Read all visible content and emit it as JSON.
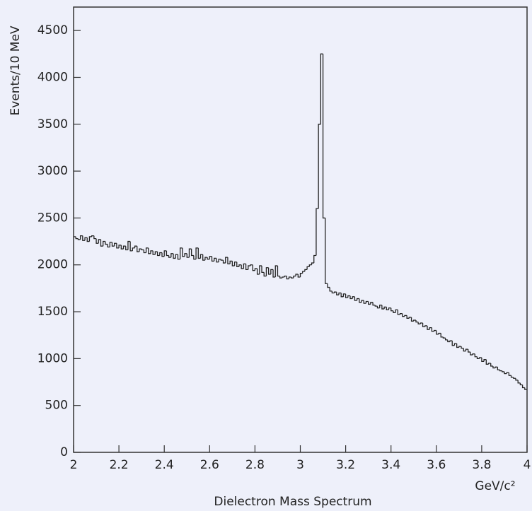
{
  "chart_data": {
    "type": "histogram",
    "title": "Dielectron Mass Spectrum",
    "x_label": "GeV/c²",
    "y_label": "Events/10 MeV",
    "color": "#222222",
    "xlim": [
      2,
      4
    ],
    "ylim": [
      0,
      4750
    ],
    "xticks": [
      2,
      2.2,
      2.4,
      2.6,
      2.8,
      3,
      3.2,
      3.4,
      3.6,
      3.8,
      4
    ],
    "yticks": [
      0,
      500,
      1000,
      1500,
      2000,
      2500,
      3000,
      3500,
      4000,
      4500
    ],
    "bins": [
      2,
      2.01,
      2.02,
      2.03,
      2.04,
      2.05,
      2.06,
      2.07,
      2.08,
      2.09,
      2.1,
      2.11,
      2.12,
      2.13,
      2.14,
      2.15,
      2.16,
      2.17,
      2.18,
      2.19,
      2.2,
      2.21,
      2.22,
      2.23,
      2.24,
      2.25,
      2.26,
      2.27,
      2.28,
      2.29,
      2.3,
      2.31,
      2.32,
      2.33,
      2.34,
      2.35,
      2.36,
      2.37,
      2.38,
      2.39,
      2.4,
      2.41,
      2.42,
      2.43,
      2.44,
      2.45,
      2.46,
      2.47,
      2.48,
      2.49,
      2.5,
      2.51,
      2.52,
      2.53,
      2.54,
      2.55,
      2.56,
      2.57,
      2.58,
      2.59,
      2.6,
      2.61,
      2.62,
      2.63,
      2.64,
      2.65,
      2.66,
      2.67,
      2.68,
      2.69,
      2.7,
      2.71,
      2.72,
      2.73,
      2.74,
      2.75,
      2.76,
      2.77,
      2.78,
      2.79,
      2.8,
      2.81,
      2.82,
      2.83,
      2.84,
      2.85,
      2.86,
      2.87,
      2.88,
      2.89,
      2.9,
      2.91,
      2.92,
      2.93,
      2.94,
      2.95,
      2.96,
      2.97,
      2.98,
      2.99,
      3,
      3.01,
      3.02,
      3.03,
      3.04,
      3.05,
      3.06,
      3.07,
      3.08,
      3.09,
      3.1,
      3.11,
      3.12,
      3.13,
      3.14,
      3.15,
      3.16,
      3.17,
      3.18,
      3.19,
      3.2,
      3.21,
      3.22,
      3.23,
      3.24,
      3.25,
      3.26,
      3.27,
      3.28,
      3.29,
      3.3,
      3.31,
      3.32,
      3.33,
      3.34,
      3.35,
      3.36,
      3.37,
      3.38,
      3.39,
      3.4,
      3.41,
      3.42,
      3.43,
      3.44,
      3.45,
      3.46,
      3.47,
      3.48,
      3.49,
      3.5,
      3.51,
      3.52,
      3.53,
      3.54,
      3.55,
      3.56,
      3.57,
      3.58,
      3.59,
      3.6,
      3.61,
      3.62,
      3.63,
      3.64,
      3.65,
      3.66,
      3.67,
      3.68,
      3.69,
      3.7,
      3.71,
      3.72,
      3.73,
      3.74,
      3.75,
      3.76,
      3.77,
      3.78,
      3.79,
      3.8,
      3.81,
      3.82,
      3.83,
      3.84,
      3.85,
      3.86,
      3.87,
      3.88,
      3.89,
      3.9,
      3.91,
      3.92,
      3.93,
      3.94,
      3.95,
      3.96,
      3.97,
      3.98,
      3.99,
      4
    ],
    "values": [
      2300,
      2280,
      2270,
      2310,
      2260,
      2290,
      2250,
      2300,
      2310,
      2280,
      2230,
      2270,
      2200,
      2250,
      2220,
      2190,
      2240,
      2200,
      2230,
      2180,
      2210,
      2170,
      2200,
      2160,
      2250,
      2150,
      2180,
      2200,
      2140,
      2170,
      2160,
      2130,
      2180,
      2120,
      2150,
      2110,
      2140,
      2100,
      2130,
      2090,
      2150,
      2100,
      2080,
      2120,
      2070,
      2110,
      2060,
      2180,
      2090,
      2120,
      2080,
      2170,
      2100,
      2060,
      2180,
      2070,
      2110,
      2050,
      2080,
      2060,
      2090,
      2040,
      2070,
      2030,
      2060,
      2050,
      2020,
      2080,
      2010,
      2040,
      1990,
      2030,
      1980,
      2000,
      1960,
      2010,
      1950,
      1990,
      2000,
      1940,
      1960,
      1900,
      1990,
      1920,
      1880,
      1970,
      1900,
      1950,
      1870,
      1990,
      1880,
      1860,
      1870,
      1880,
      1850,
      1870,
      1860,
      1880,
      1900,
      1870,
      1910,
      1930,
      1950,
      1980,
      2000,
      2020,
      2100,
      2600,
      3500,
      4250,
      2500,
      1800,
      1760,
      1720,
      1700,
      1710,
      1680,
      1700,
      1660,
      1690,
      1650,
      1670,
      1640,
      1660,
      1620,
      1640,
      1600,
      1620,
      1590,
      1610,
      1580,
      1600,
      1570,
      1560,
      1540,
      1570,
      1530,
      1550,
      1520,
      1540,
      1510,
      1490,
      1520,
      1470,
      1480,
      1450,
      1460,
      1430,
      1440,
      1400,
      1410,
      1390,
      1370,
      1380,
      1340,
      1350,
      1310,
      1330,
      1290,
      1300,
      1260,
      1270,
      1230,
      1220,
      1200,
      1180,
      1190,
      1140,
      1160,
      1120,
      1130,
      1110,
      1080,
      1100,
      1070,
      1040,
      1050,
      1020,
      1000,
      1010,
      970,
      990,
      940,
      950,
      920,
      900,
      910,
      880,
      870,
      860,
      840,
      850,
      820,
      800,
      790,
      770,
      740,
      720,
      690,
      670
    ]
  }
}
